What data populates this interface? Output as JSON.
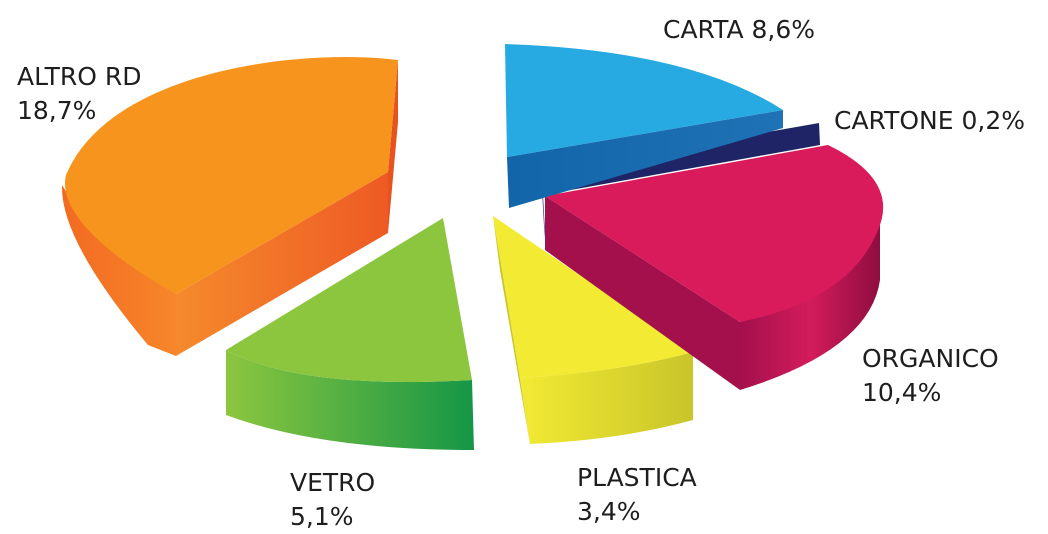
{
  "chart_data": {
    "type": "pie",
    "title": "",
    "style": "3d-exploded",
    "slices": [
      {
        "key": "carta",
        "label": "CARTA",
        "value": 8.6,
        "display": "CARTA 8,6%",
        "color": "#27aae1",
        "dark": "#1568a8"
      },
      {
        "key": "cartone",
        "label": "CARTONE",
        "value": 0.2,
        "display": "CARTONE 0,2%",
        "color": "#2b3b8f",
        "dark": "#1f2466"
      },
      {
        "key": "organico",
        "label": "ORGANICO",
        "value": 10.4,
        "display_name": "ORGANICO",
        "display_value": "10,4%",
        "color": "#d91b5c",
        "dark": "#9c0d45"
      },
      {
        "key": "plastica",
        "label": "PLASTICA",
        "value": 3.4,
        "display_name": "PLASTICA",
        "display_value": "3,4%",
        "color": "#f2ea33",
        "dark": "#c4c21a"
      },
      {
        "key": "vetro",
        "label": "VETRO",
        "value": 5.1,
        "display_name": "VETRO",
        "display_value": "5,1%",
        "color": "#8cc63f",
        "dark": "#129447"
      },
      {
        "key": "altro",
        "label": "ALTRO RD",
        "value": 18.7,
        "display_name": "ALTRO RD",
        "display_value": "18,7%",
        "color": "#f7941d",
        "dark": "#ef5a24"
      }
    ]
  }
}
